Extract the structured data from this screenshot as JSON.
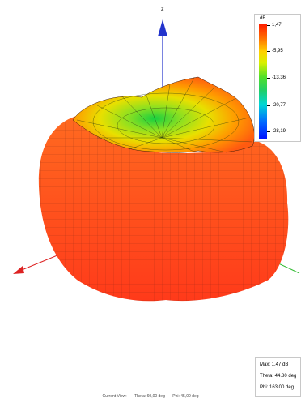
{
  "axes": {
    "z_label": "z"
  },
  "color_scale": {
    "unit": "dB",
    "ticks": [
      "1,47",
      "-5,95",
      "-13,36",
      "-20,77",
      "-28,19"
    ]
  },
  "info": {
    "max": "Max: 1.47 dB",
    "theta": "Theta: 44.80 deg",
    "phi": "Phi: 163.00 deg"
  },
  "status": {
    "view_prefix": "Current View:",
    "theta": "Theta: 60,00 deg",
    "phi": "Phi: 45,00 deg"
  },
  "colors": {
    "surface_main": "#ff4a1e",
    "surface_mesh": "#4a1a10",
    "z_axis": "#2233cc",
    "x_axis": "#dd2222",
    "y_axis": "#33bb33"
  }
}
